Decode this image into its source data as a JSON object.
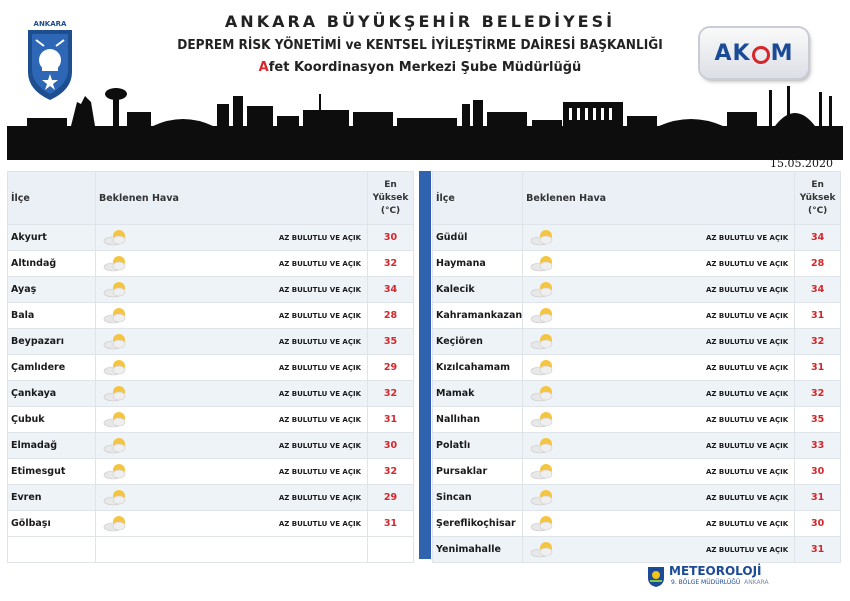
{
  "header": {
    "logo_label": "ANKARA",
    "line1": "ANKARA BÜYÜKŞEHİR BELEDİYESİ",
    "line2": "DEPREM RİSK YÖNETİMİ ve KENTSEL İYİLEŞTİRME DAİRESİ BAŞKANLIĞI",
    "line3_initial": "A",
    "line3_rest": "fet Koordinasyon Merkezi Şube Müdürlüğü",
    "akom_left": "AK",
    "akom_right": "M"
  },
  "date": "15.05.2020",
  "columns": {
    "district": "İlçe",
    "weather": "Beklenen Hava",
    "max_line1": "En",
    "max_line2": "Yüksek",
    "max_line3": "(°C)"
  },
  "left": [
    {
      "district": "Akyurt",
      "condition": "AZ BULUTLU VE AÇIK",
      "temp": "30"
    },
    {
      "district": "Altındağ",
      "condition": "AZ BULUTLU VE AÇIK",
      "temp": "32"
    },
    {
      "district": "Ayaş",
      "condition": "AZ BULUTLU VE AÇIK",
      "temp": "34"
    },
    {
      "district": "Bala",
      "condition": "AZ BULUTLU VE AÇIK",
      "temp": "28"
    },
    {
      "district": "Beypazarı",
      "condition": "AZ BULUTLU VE AÇIK",
      "temp": "35"
    },
    {
      "district": "Çamlıdere",
      "condition": "AZ BULUTLU VE AÇIK",
      "temp": "29"
    },
    {
      "district": "Çankaya",
      "condition": "AZ BULUTLU VE AÇIK",
      "temp": "32"
    },
    {
      "district": "Çubuk",
      "condition": "AZ BULUTLU VE AÇIK",
      "temp": "31"
    },
    {
      "district": "Elmadağ",
      "condition": "AZ BULUTLU VE AÇIK",
      "temp": "30"
    },
    {
      "district": "Etimesgut",
      "condition": "AZ BULUTLU VE AÇIK",
      "temp": "32"
    },
    {
      "district": "Evren",
      "condition": "AZ BULUTLU VE AÇIK",
      "temp": "29"
    },
    {
      "district": "Gölbaşı",
      "condition": "AZ BULUTLU VE AÇIK",
      "temp": "31"
    }
  ],
  "right": [
    {
      "district": "Güdül",
      "condition": "AZ BULUTLU VE AÇIK",
      "temp": "34"
    },
    {
      "district": "Haymana",
      "condition": "AZ BULUTLU VE AÇIK",
      "temp": "28"
    },
    {
      "district": "Kalecik",
      "condition": "AZ BULUTLU VE AÇIK",
      "temp": "34"
    },
    {
      "district": "Kahramankazan",
      "condition": "AZ BULUTLU VE AÇIK",
      "temp": "31"
    },
    {
      "district": "Keçiören",
      "condition": "AZ BULUTLU VE AÇIK",
      "temp": "32"
    },
    {
      "district": "Kızılcahamam",
      "condition": "AZ BULUTLU VE AÇIK",
      "temp": "31"
    },
    {
      "district": "Mamak",
      "condition": "AZ BULUTLU VE AÇIK",
      "temp": "32"
    },
    {
      "district": "Nallıhan",
      "condition": "AZ BULUTLU VE AÇIK",
      "temp": "35"
    },
    {
      "district": "Polatlı",
      "condition": "AZ BULUTLU VE AÇIK",
      "temp": "33"
    },
    {
      "district": "Pursaklar",
      "condition": "AZ BULUTLU VE AÇIK",
      "temp": "30"
    },
    {
      "district": "Sincan",
      "condition": "AZ BULUTLU VE AÇIK",
      "temp": "31"
    },
    {
      "district": "Şereflikoçhisar",
      "condition": "AZ BULUTLU VE AÇIK",
      "temp": "30"
    },
    {
      "district": "Yenimahalle",
      "condition": "AZ BULUTLU VE AÇIK",
      "temp": "31"
    }
  ],
  "footer": {
    "title": "METEOROLOJİ",
    "subtitle_main": "9. BÖLGE MÜDÜRLÜĞÜ",
    "subtitle_city": "ANKARA"
  },
  "colors": {
    "accent_blue": "#2f63b0",
    "temp_red": "#d7262a",
    "header_bg": "#eaf0f6"
  },
  "icons": {
    "weather": "partly-cloudy-icon",
    "municipality_logo": "ankara-emblem-icon",
    "akom_logo": "akom-logo-icon",
    "meteo_logo": "meteorology-logo-icon"
  }
}
